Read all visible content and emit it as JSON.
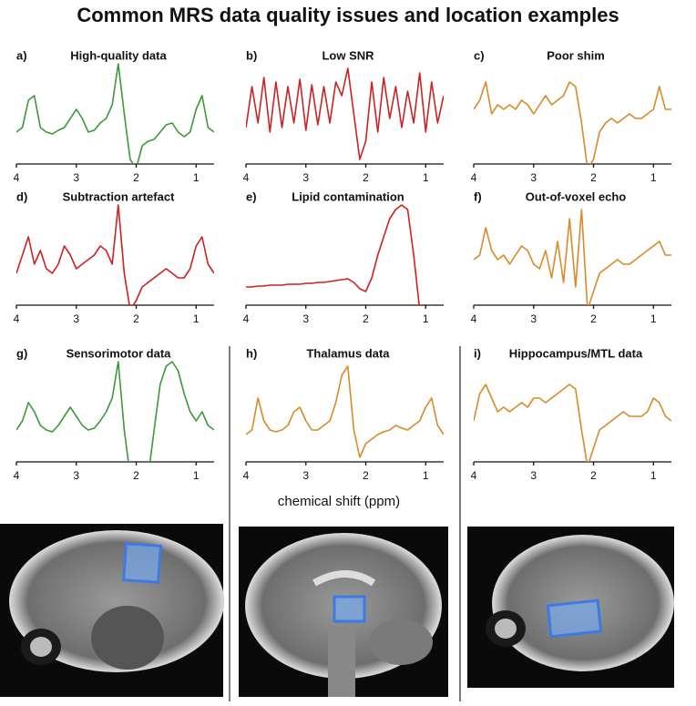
{
  "title": "Common MRS data quality issues and location examples",
  "xlabel": "chemical shift (ppm)",
  "chart_data": [
    {
      "type": "line",
      "label": "a)",
      "title": "High-quality data",
      "color": "#3a9a3a",
      "xlim": [
        4,
        0.7
      ],
      "xticks": [
        4,
        3,
        2,
        1
      ],
      "ylim": [
        -15,
        100
      ],
      "x": [
        4.0,
        3.9,
        3.8,
        3.7,
        3.6,
        3.5,
        3.4,
        3.3,
        3.2,
        3.1,
        3.0,
        2.9,
        2.8,
        2.7,
        2.6,
        2.5,
        2.4,
        2.3,
        2.2,
        2.1,
        2.0,
        1.9,
        1.8,
        1.7,
        1.6,
        1.5,
        1.4,
        1.3,
        1.2,
        1.1,
        1.0,
        0.9,
        0.8,
        0.7
      ],
      "values": [
        20,
        25,
        55,
        60,
        25,
        20,
        18,
        22,
        25,
        35,
        45,
        35,
        20,
        22,
        30,
        35,
        50,
        95,
        40,
        -10,
        -20,
        5,
        10,
        12,
        20,
        28,
        30,
        20,
        15,
        20,
        45,
        60,
        25,
        20
      ]
    },
    {
      "type": "line",
      "label": "b)",
      "title": "Low SNR",
      "color": "#cc2222",
      "xlim": [
        4,
        0.7
      ],
      "xticks": [
        4,
        3,
        2,
        1
      ],
      "ylim": [
        -15,
        100
      ],
      "x": [
        4.0,
        3.9,
        3.8,
        3.7,
        3.6,
        3.5,
        3.4,
        3.3,
        3.2,
        3.1,
        3.0,
        2.9,
        2.8,
        2.7,
        2.6,
        2.5,
        2.4,
        2.3,
        2.2,
        2.1,
        2.0,
        1.9,
        1.8,
        1.7,
        1.6,
        1.5,
        1.4,
        1.3,
        1.2,
        1.1,
        1.0,
        0.9,
        0.8,
        0.7
      ],
      "values": [
        25,
        70,
        30,
        80,
        20,
        75,
        25,
        70,
        30,
        78,
        22,
        72,
        28,
        70,
        30,
        75,
        60,
        90,
        40,
        -10,
        10,
        75,
        20,
        80,
        35,
        70,
        25,
        65,
        30,
        85,
        20,
        75,
        30,
        60
      ]
    },
    {
      "type": "line",
      "label": "c)",
      "title": "Poor shim",
      "color": "#d98a2a",
      "xlim": [
        4,
        0.7
      ],
      "xticks": [
        4,
        3,
        2,
        1
      ],
      "ylim": [
        -15,
        100
      ],
      "x": [
        4.0,
        3.9,
        3.8,
        3.7,
        3.6,
        3.5,
        3.4,
        3.3,
        3.2,
        3.1,
        3.0,
        2.9,
        2.8,
        2.7,
        2.6,
        2.5,
        2.4,
        2.3,
        2.2,
        2.1,
        2.0,
        1.9,
        1.8,
        1.7,
        1.6,
        1.5,
        1.4,
        1.3,
        1.2,
        1.1,
        1.0,
        0.9,
        0.8,
        0.7
      ],
      "values": [
        45,
        55,
        75,
        40,
        50,
        45,
        50,
        45,
        55,
        50,
        40,
        50,
        60,
        50,
        55,
        60,
        75,
        70,
        30,
        -20,
        -10,
        20,
        30,
        35,
        30,
        35,
        40,
        35,
        35,
        40,
        45,
        70,
        45,
        45
      ]
    },
    {
      "type": "line",
      "label": "d)",
      "title": "Subtraction artefact",
      "color": "#cc2222",
      "xlim": [
        4,
        0.7
      ],
      "xticks": [
        4,
        3,
        2,
        1
      ],
      "ylim": [
        -15,
        100
      ],
      "x": [
        4.0,
        3.9,
        3.8,
        3.7,
        3.6,
        3.5,
        3.4,
        3.3,
        3.2,
        3.1,
        3.0,
        2.9,
        2.8,
        2.7,
        2.6,
        2.5,
        2.4,
        2.3,
        2.2,
        2.1,
        2.0,
        1.9,
        1.8,
        1.7,
        1.6,
        1.5,
        1.4,
        1.3,
        1.2,
        1.1,
        1.0,
        0.9,
        0.8,
        0.7
      ],
      "values": [
        20,
        40,
        60,
        30,
        45,
        25,
        20,
        30,
        50,
        40,
        25,
        30,
        35,
        40,
        50,
        45,
        30,
        95,
        20,
        -20,
        -10,
        5,
        10,
        15,
        20,
        25,
        20,
        15,
        15,
        25,
        50,
        60,
        30,
        20
      ]
    },
    {
      "type": "line",
      "label": "e)",
      "title": "Lipid contamination",
      "color": "#cc2222",
      "xlim": [
        4,
        0.7
      ],
      "xticks": [
        4,
        3,
        2,
        1
      ],
      "ylim": [
        -15,
        100
      ],
      "x": [
        4.0,
        3.9,
        3.8,
        3.7,
        3.6,
        3.5,
        3.4,
        3.3,
        3.2,
        3.1,
        3.0,
        2.9,
        2.8,
        2.7,
        2.6,
        2.5,
        2.4,
        2.3,
        2.2,
        2.1,
        2.0,
        1.9,
        1.8,
        1.7,
        1.6,
        1.5,
        1.4,
        1.3,
        1.2,
        1.1,
        1.0,
        0.9,
        0.8,
        0.7
      ],
      "values": [
        5,
        5,
        6,
        6,
        7,
        7,
        7,
        8,
        8,
        8,
        9,
        9,
        10,
        10,
        11,
        12,
        13,
        14,
        10,
        3,
        0,
        15,
        40,
        60,
        80,
        90,
        95,
        90,
        40,
        -20,
        null,
        null,
        null,
        null
      ]
    },
    {
      "type": "line",
      "label": "f)",
      "title": "Out-of-voxel echo",
      "color": "#d98a2a",
      "xlim": [
        4,
        0.7
      ],
      "xticks": [
        4,
        3,
        2,
        1
      ],
      "ylim": [
        -15,
        100
      ],
      "x": [
        4.0,
        3.9,
        3.8,
        3.7,
        3.6,
        3.5,
        3.4,
        3.3,
        3.2,
        3.1,
        3.0,
        2.9,
        2.8,
        2.7,
        2.6,
        2.5,
        2.4,
        2.3,
        2.2,
        2.1,
        2.0,
        1.9,
        1.8,
        1.7,
        1.6,
        1.5,
        1.4,
        1.3,
        1.2,
        1.1,
        1.0,
        0.9,
        0.8,
        0.7
      ],
      "values": [
        35,
        40,
        70,
        45,
        35,
        40,
        30,
        40,
        50,
        45,
        30,
        25,
        45,
        15,
        55,
        10,
        80,
        5,
        90,
        -20,
        0,
        20,
        25,
        30,
        35,
        30,
        30,
        35,
        40,
        45,
        50,
        55,
        40,
        40
      ]
    },
    {
      "type": "line",
      "label": "g)",
      "title": "Sensorimotor data",
      "color": "#3a9a3a",
      "xlim": [
        4,
        0.7
      ],
      "xticks": [
        4,
        3,
        2,
        1
      ],
      "ylim": [
        -15,
        100
      ],
      "x": [
        4.0,
        3.9,
        3.8,
        3.7,
        3.6,
        3.5,
        3.4,
        3.3,
        3.2,
        3.1,
        3.0,
        2.9,
        2.8,
        2.7,
        2.6,
        2.5,
        2.4,
        2.3,
        2.2,
        2.1,
        2.0,
        1.9,
        1.8,
        1.7,
        1.6,
        1.5,
        1.4,
        1.3,
        1.2,
        1.1,
        1.0,
        0.9,
        0.8,
        0.7
      ],
      "values": [
        20,
        30,
        50,
        40,
        25,
        20,
        18,
        25,
        35,
        45,
        35,
        25,
        20,
        22,
        30,
        40,
        55,
        95,
        20,
        -30,
        null,
        null,
        -30,
        20,
        70,
        90,
        95,
        85,
        60,
        40,
        30,
        40,
        25,
        20
      ]
    },
    {
      "type": "line",
      "label": "h)",
      "title": "Thalamus data",
      "color": "#d98a2a",
      "xlim": [
        4,
        0.7
      ],
      "xticks": [
        4,
        3,
        2,
        1
      ],
      "ylim": [
        -15,
        100
      ],
      "x": [
        4.0,
        3.9,
        3.8,
        3.7,
        3.6,
        3.5,
        3.4,
        3.3,
        3.2,
        3.1,
        3.0,
        2.9,
        2.8,
        2.7,
        2.6,
        2.5,
        2.4,
        2.3,
        2.2,
        2.1,
        2.0,
        1.9,
        1.8,
        1.7,
        1.6,
        1.5,
        1.4,
        1.3,
        1.2,
        1.1,
        1.0,
        0.9,
        0.8,
        0.7
      ],
      "values": [
        15,
        20,
        55,
        30,
        20,
        18,
        20,
        25,
        40,
        45,
        30,
        20,
        20,
        25,
        30,
        50,
        80,
        90,
        20,
        -10,
        5,
        10,
        15,
        18,
        20,
        25,
        22,
        20,
        25,
        30,
        45,
        55,
        25,
        15
      ]
    },
    {
      "type": "line",
      "label": "i)",
      "title": "Hippocampus/MTL data",
      "color": "#d98a2a",
      "xlim": [
        4,
        0.7
      ],
      "xticks": [
        4,
        3,
        2,
        1
      ],
      "ylim": [
        -15,
        100
      ],
      "x": [
        4.0,
        3.9,
        3.8,
        3.7,
        3.6,
        3.5,
        3.4,
        3.3,
        3.2,
        3.1,
        3.0,
        2.9,
        2.8,
        2.7,
        2.6,
        2.5,
        2.4,
        2.3,
        2.2,
        2.1,
        2.0,
        1.9,
        1.8,
        1.7,
        1.6,
        1.5,
        1.4,
        1.3,
        1.2,
        1.1,
        1.0,
        0.9,
        0.8,
        0.7
      ],
      "values": [
        30,
        60,
        70,
        55,
        40,
        45,
        40,
        45,
        50,
        45,
        55,
        55,
        50,
        55,
        60,
        65,
        70,
        65,
        20,
        -20,
        0,
        20,
        25,
        30,
        35,
        40,
        35,
        35,
        35,
        40,
        55,
        50,
        35,
        30
      ]
    }
  ]
}
